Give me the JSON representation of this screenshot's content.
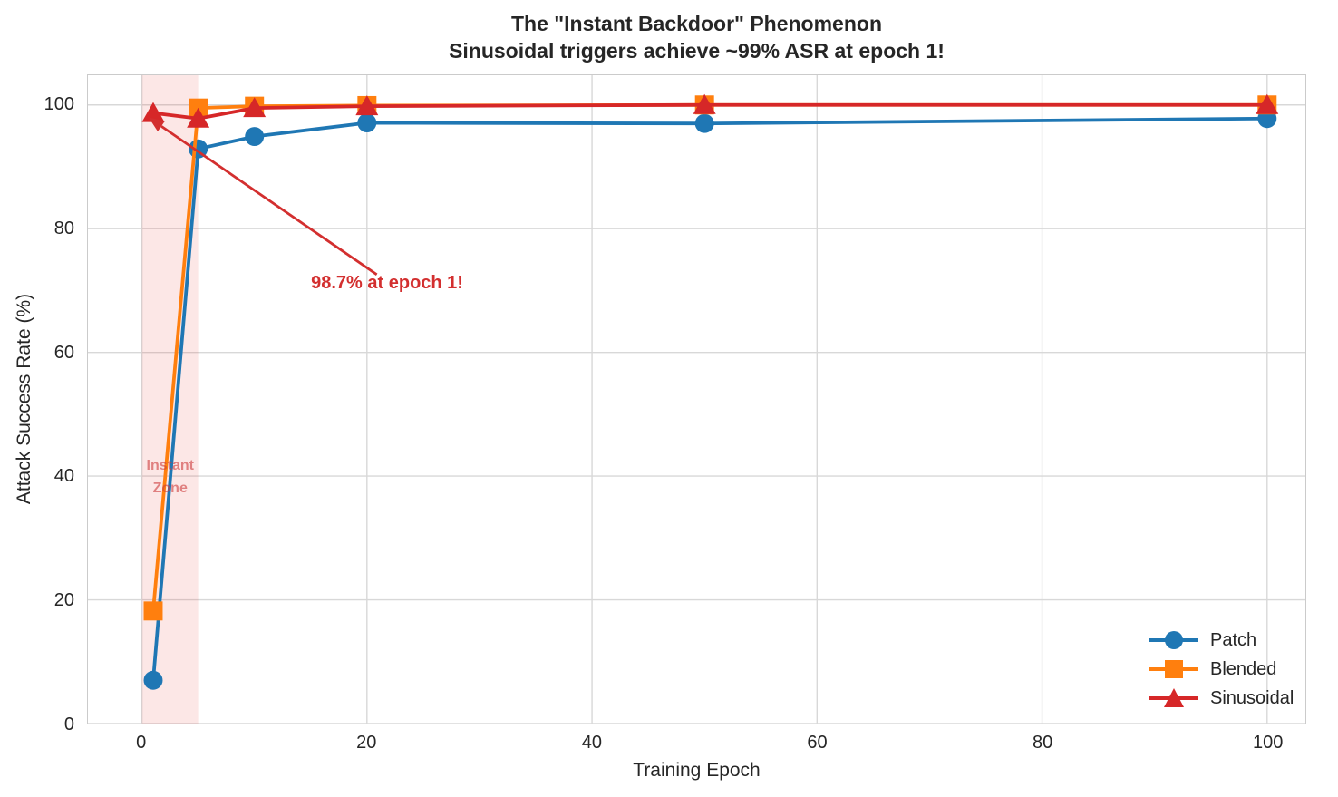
{
  "chart_data": {
    "type": "line",
    "title": "The \"Instant Backdoor\" Phenomenon",
    "subtitle": "Sinusoidal triggers achieve ~99% ASR at epoch 1!",
    "xlabel": "Training Epoch",
    "ylabel": "Attack Success Rate (%)",
    "x": [
      1,
      5,
      10,
      20,
      50,
      100
    ],
    "x_ticks": [
      0,
      20,
      40,
      60,
      80,
      100
    ],
    "y_ticks": [
      0,
      20,
      40,
      60,
      80,
      100
    ],
    "xlim": [
      -4.8,
      103.4
    ],
    "ylim": [
      0,
      104.8
    ],
    "grid": true,
    "grid_color": "#d8d8d8",
    "series": [
      {
        "name": "Patch",
        "color": "#1f77b4",
        "marker": "circle",
        "values": [
          7.0,
          92.9,
          94.9,
          97.1,
          97.0,
          97.8
        ]
      },
      {
        "name": "Blended",
        "color": "#ff7f0e",
        "marker": "square",
        "values": [
          18.2,
          99.5,
          99.8,
          99.9,
          100.0,
          100.0
        ]
      },
      {
        "name": "Sinusoidal",
        "color": "#d62728",
        "marker": "triangle",
        "values": [
          98.7,
          97.8,
          99.5,
          99.8,
          100.0,
          100.0
        ]
      }
    ],
    "legend": {
      "position": "lower right",
      "entries": [
        "Patch",
        "Blended",
        "Sinusoidal"
      ]
    },
    "annotation": {
      "text": "98.7% at epoch 1!",
      "target": [
        1,
        98.7
      ],
      "text_pos": [
        15,
        72
      ],
      "color": "#d32f2f"
    },
    "shaded_region": {
      "x_start": 0,
      "x_end": 5,
      "fill": "rgba(229,57,53,0.12)",
      "label": "Instant\nZone",
      "label_pos": [
        2.5,
        40
      ],
      "label_color": "rgba(205,60,60,0.6)"
    }
  }
}
